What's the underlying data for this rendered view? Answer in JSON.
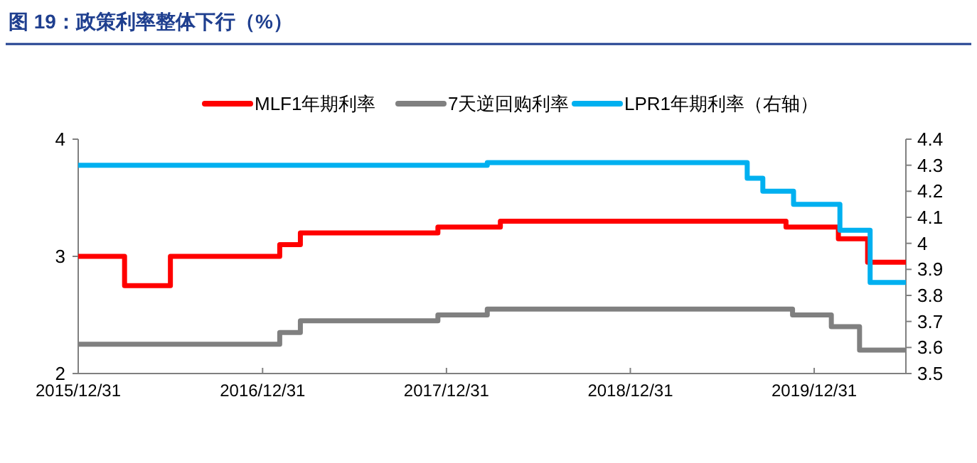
{
  "chart_data": {
    "type": "step",
    "title": "图 19：政策利率整体下行（%）",
    "xlim": [
      "2015-12-31",
      "2020-06-30"
    ],
    "xticks": [
      {
        "value": "2015-12-31",
        "label": "2015/12/31"
      },
      {
        "value": "2016-12-31",
        "label": "2016/12/31"
      },
      {
        "value": "2017-12-31",
        "label": "2017/12/31"
      },
      {
        "value": "2018-12-31",
        "label": "2018/12/31"
      },
      {
        "value": "2019-12-31",
        "label": "2019/12/31"
      }
    ],
    "ylim": [
      2,
      4
    ],
    "yticks": [
      2,
      3,
      4
    ],
    "y2lim": [
      3.5,
      4.4
    ],
    "y2ticks": [
      3.5,
      3.6,
      3.7,
      3.8,
      3.9,
      4,
      4.1,
      4.2,
      4.3,
      4.4
    ],
    "legend": "top",
    "grid": false,
    "series": [
      {
        "name": "MLF1年期利率",
        "color": "#ff0000",
        "x": [
          "2015-12-31",
          "2016-04-01",
          "2016-07-01",
          "2017-02-03",
          "2017-03-16",
          "2017-12-14",
          "2018-04-17",
          "2019-11-05",
          "2020-02-17",
          "2020-04-15",
          "2020-06-30"
        ],
        "values": [
          3.0,
          2.75,
          3.0,
          3.1,
          3.2,
          3.25,
          3.3,
          3.25,
          3.15,
          2.95,
          2.95
        ]
      },
      {
        "name": "7天逆回购利率",
        "color": "#808080",
        "x": [
          "2015-12-31",
          "2017-02-03",
          "2017-03-16",
          "2017-12-14",
          "2018-03-22",
          "2019-11-18",
          "2020-02-03",
          "2020-03-30",
          "2020-06-30"
        ],
        "values": [
          2.25,
          2.35,
          2.45,
          2.5,
          2.55,
          2.5,
          2.4,
          2.2,
          2.2
        ]
      },
      {
        "name": "LPR1年期利率（右轴）",
        "color": "#00b0f0",
        "axis": "y2",
        "x": [
          "2015-12-31",
          "2018-03-22",
          "2019-08-20",
          "2019-09-20",
          "2019-11-20",
          "2020-02-20",
          "2020-04-20",
          "2020-06-30"
        ],
        "values": [
          4.3,
          4.31,
          4.25,
          4.2,
          4.15,
          4.05,
          3.85,
          3.85
        ]
      }
    ]
  }
}
